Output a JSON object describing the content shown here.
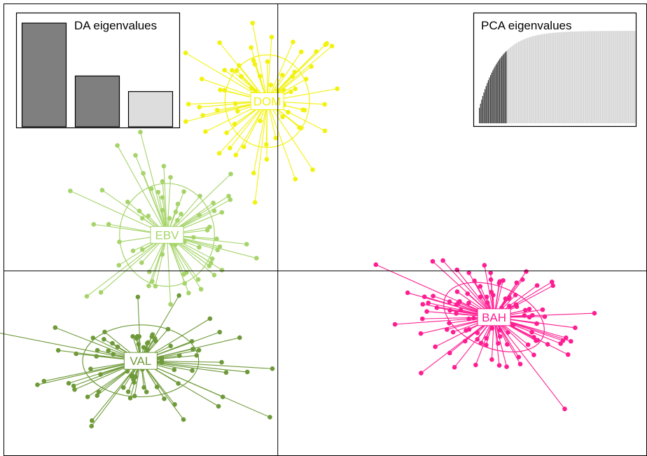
{
  "chart_data": {
    "type": "scatter",
    "title": "",
    "xlabel": "",
    "ylabel": "",
    "axes": {
      "x_range": [
        -5.2,
        7.0
      ],
      "y_range": [
        -3.6,
        5.2
      ],
      "cross_lines_at": [
        0,
        0
      ],
      "grid": false
    },
    "groups": [
      {
        "name": "DOM",
        "color": "#F2F20E",
        "centroid": [
          -0.2,
          3.3
        ],
        "spread": [
          0.75,
          0.75
        ],
        "n_points": 70,
        "ellipse": [
          0.8,
          0.9,
          0
        ]
      },
      {
        "name": "EBV",
        "color": "#A6D46A",
        "centroid": [
          -2.1,
          0.7
        ],
        "spread": [
          0.8,
          0.8
        ],
        "n_points": 70,
        "ellipse": [
          0.9,
          1.0,
          0
        ]
      },
      {
        "name": "VAL",
        "color": "#6F9A3A",
        "centroid": [
          -2.6,
          -1.75
        ],
        "spread": [
          0.9,
          0.55
        ],
        "n_points": 90,
        "ellipse": [
          1.1,
          0.7,
          0
        ]
      },
      {
        "name": "BAH",
        "color": "#FF1D92",
        "centroid": [
          4.1,
          -0.9
        ],
        "spread": [
          0.85,
          0.45
        ],
        "n_points": 110,
        "ellipse": [
          1.0,
          0.6,
          -22
        ]
      }
    ],
    "insets": [
      {
        "title": "DA eigenvalues",
        "type": "bar",
        "values": [
          1.0,
          0.49,
          0.34
        ],
        "retained": 2,
        "legend_position": "top-left"
      },
      {
        "title": "PCA eigenvalues",
        "type": "bar",
        "cumulative": true,
        "n_bars": 140,
        "retained": 25,
        "legend_position": "top-right"
      }
    ]
  },
  "colors": {
    "frame": "#000000",
    "axis_lines": "#000000",
    "inset_retained": "#7F7F7F",
    "inset_dropped": "#DDDDDD",
    "pca_retained": "#404040",
    "pca_dropped": "#D3D3D3"
  }
}
